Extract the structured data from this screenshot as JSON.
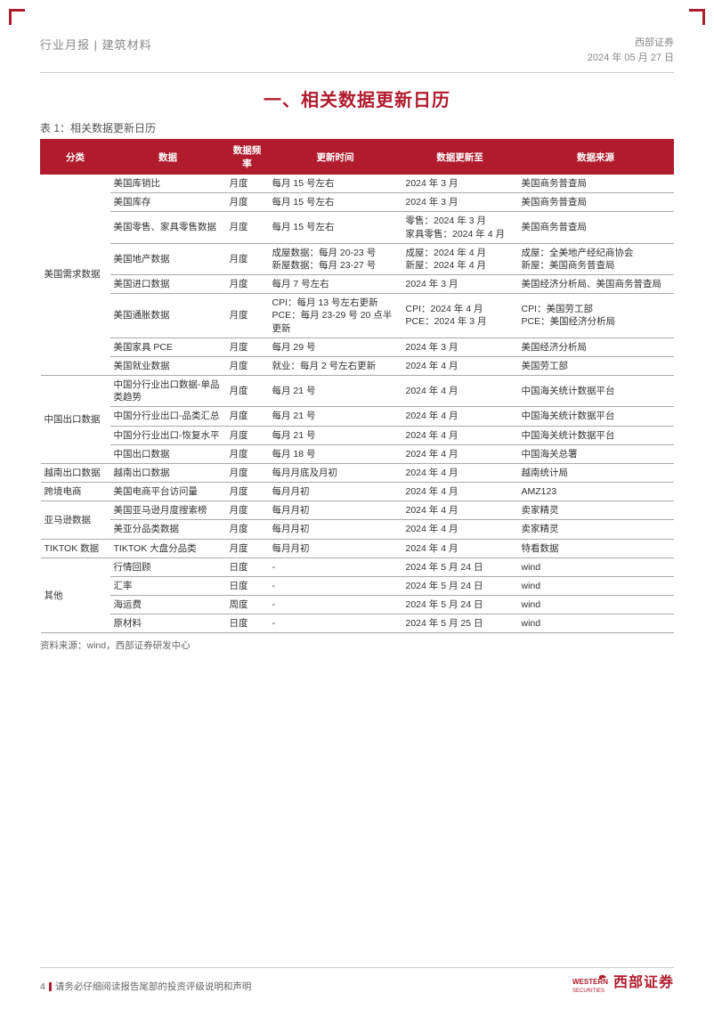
{
  "header": {
    "left": "行业月报 | 建筑材料",
    "company": "西部证券",
    "date": "2024 年 05 月 27 日"
  },
  "section_title": "一、相关数据更新日历",
  "table_caption": "表 1：相关数据更新日历",
  "columns": [
    "分类",
    "数据",
    "数据频率",
    "更新时间",
    "数据更新至",
    "数据来源"
  ],
  "groups": [
    {
      "category": "美国需求数据",
      "rows": [
        {
          "data": "美国库销比",
          "freq": "月度",
          "time": "每月 15 号左右",
          "upto": "2024 年 3 月",
          "src": "美国商务普查局"
        },
        {
          "data": "美国库存",
          "freq": "月度",
          "time": "每月 15 号左右",
          "upto": "2024 年 3 月",
          "src": "美国商务普查局"
        },
        {
          "data": "美国零售、家具零售数据",
          "freq": "月度",
          "time": "每月 15 号左右",
          "upto": "零售：2024 年 3 月\n家具零售：2024 年 4 月",
          "src": "美国商务普查局"
        },
        {
          "data": "美国地产数据",
          "freq": "月度",
          "time": "成屋数据：每月 20-23 号\n新屋数据：每月 23-27 号",
          "upto": "成屋：2024 年 4 月\n新屋：2024 年 4 月",
          "src": "成屋：全美地产经纪商协会\n新屋：美国商务普查局"
        },
        {
          "data": "美国进口数据",
          "freq": "月度",
          "time": "每月 7 号左右",
          "upto": "2024 年 3 月",
          "src": "美国经济分析局、美国商务普查局"
        },
        {
          "data": "美国通胀数据",
          "freq": "月度",
          "time": "CPI：每月 13 号左右更新\nPCE：每月 23-29 号 20 点半更新",
          "upto": "CPI：2024 年 4 月\nPCE：2024 年 3 月",
          "src": "CPI：美国劳工部\nPCE：美国经济分析局"
        },
        {
          "data": "美国家具 PCE",
          "freq": "月度",
          "time": "每月 29 号",
          "upto": "2024 年 3 月",
          "src": "美国经济分析局"
        },
        {
          "data": "美国就业数据",
          "freq": "月度",
          "time": "就业：每月 2 号左右更新",
          "upto": "2024 年 4 月",
          "src": "美国劳工部"
        }
      ]
    },
    {
      "category": "中国出口数据",
      "rows": [
        {
          "data": "中国分行业出口数据-单品类趋势",
          "freq": "月度",
          "time": "每月 21 号",
          "upto": "2024 年 4 月",
          "src": "中国海关统计数据平台"
        },
        {
          "data": "中国分行业出口-品类汇总",
          "freq": "月度",
          "time": "每月 21 号",
          "upto": "2024 年 4 月",
          "src": "中国海关统计数据平台"
        },
        {
          "data": "中国分行业出口-恢复水平",
          "freq": "月度",
          "time": "每月 21 号",
          "upto": "2024 年 4 月",
          "src": "中国海关统计数据平台"
        },
        {
          "data": "中国出口数据",
          "freq": "月度",
          "time": "每月 18 号",
          "upto": "2024 年 4 月",
          "src": "中国海关总署"
        }
      ]
    },
    {
      "category": "越南出口数据",
      "rows": [
        {
          "data": "越南出口数据",
          "freq": "月度",
          "time": "每月月底及月初",
          "upto": "2024 年 4 月",
          "src": "越南统计局"
        }
      ]
    },
    {
      "category": "跨境电商",
      "rows": [
        {
          "data": "美国电商平台访问量",
          "freq": "月度",
          "time": "每月月初",
          "upto": "2024 年 4 月",
          "src": "AMZ123"
        }
      ]
    },
    {
      "category": "亚马逊数据",
      "rows": [
        {
          "data": "美国亚马逊月度搜索榜",
          "freq": "月度",
          "time": "每月月初",
          "upto": "2024 年 4 月",
          "src": "卖家精灵"
        },
        {
          "data": "美亚分品类数据",
          "freq": "月度",
          "time": "每月月初",
          "upto": "2024 年 4 月",
          "src": "卖家精灵"
        }
      ]
    },
    {
      "category": "TIKTOK 数据",
      "rows": [
        {
          "data": "TIKTOK 大盘分品类",
          "freq": "月度",
          "time": "每月月初",
          "upto": "2024 年 4 月",
          "src": "特看数据"
        }
      ]
    },
    {
      "category": "其他",
      "rows": [
        {
          "data": "行情回顾",
          "freq": "日度",
          "time": "-",
          "upto": "2024 年 5 月 24 日",
          "src": "wind"
        },
        {
          "data": "汇率",
          "freq": "日度",
          "time": "-",
          "upto": "2024 年 5 月 24 日",
          "src": "wind"
        },
        {
          "data": "海运费",
          "freq": "周度",
          "time": "-",
          "upto": "2024 年 5 月 24 日",
          "src": "wind"
        },
        {
          "data": "原材料",
          "freq": "日度",
          "time": "-",
          "upto": "2024 年 5 月 25 日",
          "src": "wind"
        }
      ]
    }
  ],
  "source_note": "资料来源：wind，西部证券研发中心",
  "footer": {
    "page": "4",
    "disclaimer": "请务必仔细阅读报告尾部的投资评级说明和声明",
    "logo_en": "WESTERN",
    "logo_sub": "SECURITIES",
    "logo_cn": "西部证券"
  },
  "colors": {
    "accent": "#b01c2e",
    "text": "#333333",
    "muted": "#888888",
    "border": "#aaaaaa"
  }
}
